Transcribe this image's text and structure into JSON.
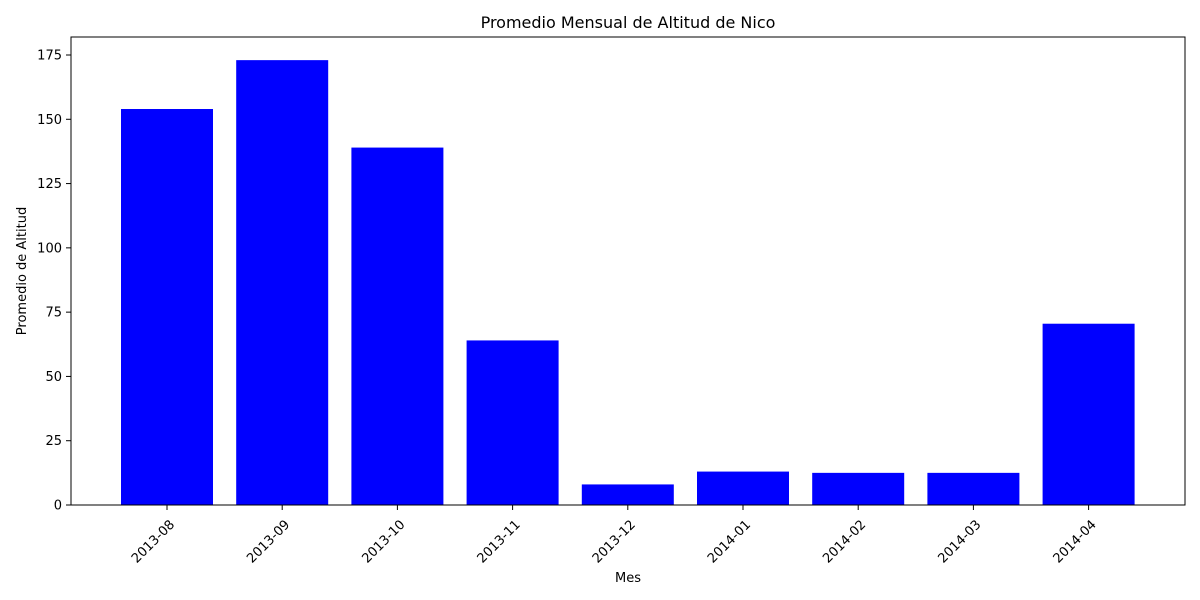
{
  "chart_data": {
    "type": "bar",
    "title": "Promedio Mensual de Altitud de Nico",
    "xlabel": "Mes",
    "ylabel": "Promedio de Altitud",
    "categories": [
      "2013-08",
      "2013-09",
      "2013-10",
      "2013-11",
      "2013-12",
      "2014-01",
      "2014-02",
      "2014-03",
      "2014-04"
    ],
    "values": [
      154,
      173,
      139,
      64,
      8,
      13,
      12.5,
      12.5,
      70.5
    ],
    "ylim": [
      0,
      182
    ],
    "yticks": [
      0,
      25,
      50,
      75,
      100,
      125,
      150,
      175
    ],
    "bar_color": "#0000ff",
    "grid": false
  }
}
